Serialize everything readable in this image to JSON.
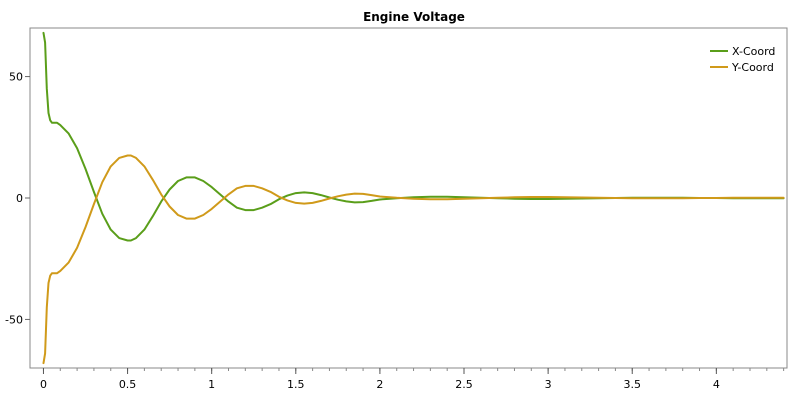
{
  "chart_data": {
    "type": "line",
    "title": "Engine Voltage",
    "xlabel": "",
    "ylabel": "",
    "xlim": [
      -0.08,
      4.42
    ],
    "ylim": [
      -70,
      70
    ],
    "x_ticks": [
      0,
      0.5,
      1,
      1.5,
      2,
      2.5,
      3,
      3.5,
      4
    ],
    "x_tick_labels": [
      "0",
      "0.5",
      "1",
      "1.5",
      "2",
      "2.5",
      "3",
      "3.5",
      "4"
    ],
    "x_minor_step": 0.1,
    "y_ticks": [
      50,
      0,
      -50
    ],
    "y_tick_labels": [
      "50",
      "0",
      "-50"
    ],
    "grid": false,
    "legend_position": "top-right",
    "x": [
      0,
      0.01,
      0.02,
      0.03,
      0.04,
      0.05,
      0.06,
      0.08,
      0.1,
      0.15,
      0.2,
      0.25,
      0.3,
      0.35,
      0.4,
      0.45,
      0.5,
      0.52,
      0.55,
      0.6,
      0.65,
      0.7,
      0.75,
      0.8,
      0.85,
      0.9,
      0.95,
      1.0,
      1.05,
      1.1,
      1.15,
      1.2,
      1.25,
      1.3,
      1.35,
      1.4,
      1.45,
      1.5,
      1.55,
      1.6,
      1.65,
      1.7,
      1.75,
      1.8,
      1.85,
      1.9,
      1.95,
      2.0,
      2.1,
      2.2,
      2.3,
      2.4,
      2.5,
      2.6,
      2.7,
      2.8,
      2.9,
      3.0,
      3.1,
      3.2,
      3.3,
      3.4,
      3.5,
      3.6,
      3.7,
      3.8,
      3.9,
      4.0,
      4.1,
      4.2,
      4.3,
      4.4
    ],
    "series": [
      {
        "name": "X-Coord",
        "color": "#5a9e1a",
        "values": [
          68,
          64,
          45,
          35,
          32,
          31,
          31,
          31,
          30,
          26.5,
          20.5,
          12,
          2.5,
          -6.5,
          -13,
          -16.5,
          -17.5,
          -17.5,
          -16.5,
          -13,
          -7.5,
          -1.5,
          3.5,
          7,
          8.5,
          8.5,
          7,
          4.5,
          1.5,
          -1.5,
          -4,
          -5,
          -5,
          -4,
          -2.5,
          -0.5,
          1,
          2,
          2.3,
          2,
          1.2,
          0.2,
          -0.7,
          -1.4,
          -1.8,
          -1.7,
          -1.2,
          -0.6,
          -0.1,
          0.3,
          0.5,
          0.5,
          0.3,
          0.1,
          -0.1,
          -0.3,
          -0.4,
          -0.4,
          -0.3,
          -0.2,
          -0.1,
          0,
          0.1,
          0.1,
          0.1,
          0.1,
          0,
          0,
          -0.1,
          -0.1,
          -0.1,
          -0.1
        ]
      },
      {
        "name": "Y-Coord",
        "color": "#d09a1a",
        "values": [
          -68,
          -64,
          -45,
          -35,
          -32,
          -31,
          -31,
          -31,
          -30,
          -26.5,
          -20.5,
          -12,
          -2.5,
          6.5,
          13,
          16.5,
          17.5,
          17.5,
          16.5,
          13,
          7.5,
          1.5,
          -3.5,
          -7,
          -8.5,
          -8.5,
          -7,
          -4.5,
          -1.5,
          1.5,
          4,
          5,
          5,
          4,
          2.5,
          0.5,
          -1,
          -2,
          -2.3,
          -2,
          -1.2,
          -0.2,
          0.7,
          1.4,
          1.8,
          1.7,
          1.2,
          0.6,
          0.1,
          -0.3,
          -0.5,
          -0.5,
          -0.3,
          -0.1,
          0.1,
          0.3,
          0.4,
          0.4,
          0.3,
          0.2,
          0.1,
          0,
          -0.1,
          -0.1,
          -0.1,
          -0.1,
          0,
          0,
          0.1,
          0.1,
          0.1,
          0.1
        ]
      }
    ]
  }
}
